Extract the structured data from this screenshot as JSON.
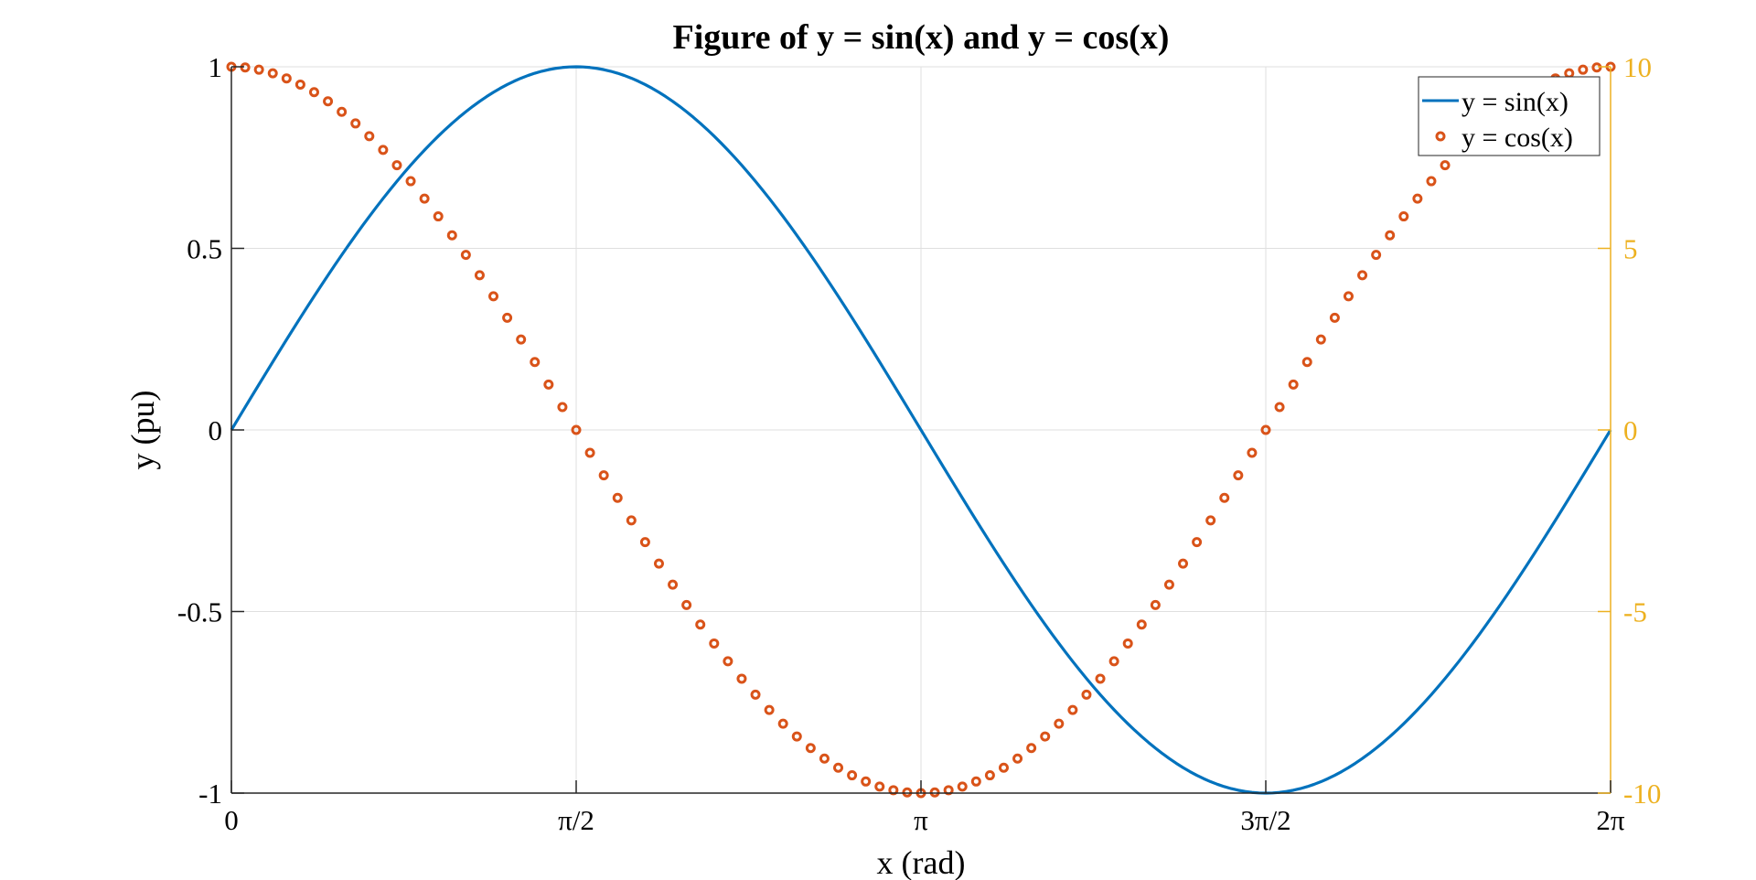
{
  "chart_data": {
    "type": "line",
    "title": "Figure of y = sin(x) and y = cos(x)",
    "xlabel": "x (rad)",
    "ylabel": "y (pu)",
    "xlim": [
      0,
      6.283185
    ],
    "ylim": [
      -1,
      1
    ],
    "y2lim": [
      -10,
      10
    ],
    "x_ticks": [
      0,
      1.570796,
      3.141593,
      4.712389,
      6.283185
    ],
    "x_tick_labels": [
      "0",
      "π/2",
      "π",
      "3π/2",
      "2π"
    ],
    "y_ticks": [
      -1,
      -0.5,
      0,
      0.5,
      1
    ],
    "y_tick_labels": [
      "-1",
      "-0.5",
      "0",
      "0.5",
      "1"
    ],
    "y2_ticks": [
      -10,
      -5,
      0,
      5,
      10
    ],
    "y2_tick_labels": [
      "-10",
      "-5",
      "0",
      "5",
      "10"
    ],
    "grid": true,
    "legend_position": "top-right",
    "colors": {
      "sin": "#0072BD",
      "cos": "#D95319",
      "right_axis": "#EDB120"
    },
    "series": [
      {
        "name": "y = sin(x)",
        "style": "line",
        "color": "#0072BD",
        "x": [
          0,
          0.314159,
          0.628319,
          0.942478,
          1.256637,
          1.570796,
          1.884956,
          2.199115,
          2.513274,
          2.827433,
          3.141593,
          3.455752,
          3.769911,
          4.08407,
          4.39823,
          4.712389,
          5.026548,
          5.340708,
          5.654867,
          5.969026,
          6.283185
        ],
        "values": [
          0,
          0.309,
          0.588,
          0.809,
          0.951,
          1,
          0.951,
          0.809,
          0.588,
          0.309,
          0,
          -0.309,
          -0.588,
          -0.809,
          -0.951,
          -1,
          -0.951,
          -0.809,
          -0.588,
          -0.309,
          0
        ]
      },
      {
        "name": "y = cos(x)",
        "style": "markers",
        "color": "#D95319",
        "x_start": 0,
        "x_end": 6.283185,
        "values": [
          1,
          0.998,
          0.992,
          0.982,
          0.968,
          0.951,
          0.93,
          0.905,
          0.876,
          0.844,
          0.809,
          0.771,
          0.729,
          0.685,
          0.637,
          0.588,
          0.536,
          0.482,
          0.426,
          0.368,
          0.309,
          0.249,
          0.187,
          0.125,
          0.063,
          0,
          -0.063,
          -0.125,
          -0.187,
          -0.249,
          -0.309,
          -0.368,
          -0.426,
          -0.482,
          -0.536,
          -0.588,
          -0.637,
          -0.685,
          -0.729,
          -0.771,
          -0.809,
          -0.844,
          -0.876,
          -0.905,
          -0.93,
          -0.951,
          -0.968,
          -0.982,
          -0.992,
          -0.998,
          -1,
          -0.998,
          -0.992,
          -0.982,
          -0.968,
          -0.951,
          -0.93,
          -0.905,
          -0.876,
          -0.844,
          -0.809,
          -0.771,
          -0.729,
          -0.685,
          -0.637,
          -0.588,
          -0.536,
          -0.482,
          -0.426,
          -0.368,
          -0.309,
          -0.249,
          -0.187,
          -0.125,
          -0.063,
          0,
          0.063,
          0.125,
          0.187,
          0.249,
          0.309,
          0.368,
          0.426,
          0.482,
          0.536,
          0.588,
          0.637,
          0.685,
          0.729,
          0.771,
          0.809,
          0.844,
          0.876,
          0.905,
          0.93,
          0.951,
          0.968,
          0.982,
          0.992,
          0.998,
          1
        ]
      }
    ]
  }
}
